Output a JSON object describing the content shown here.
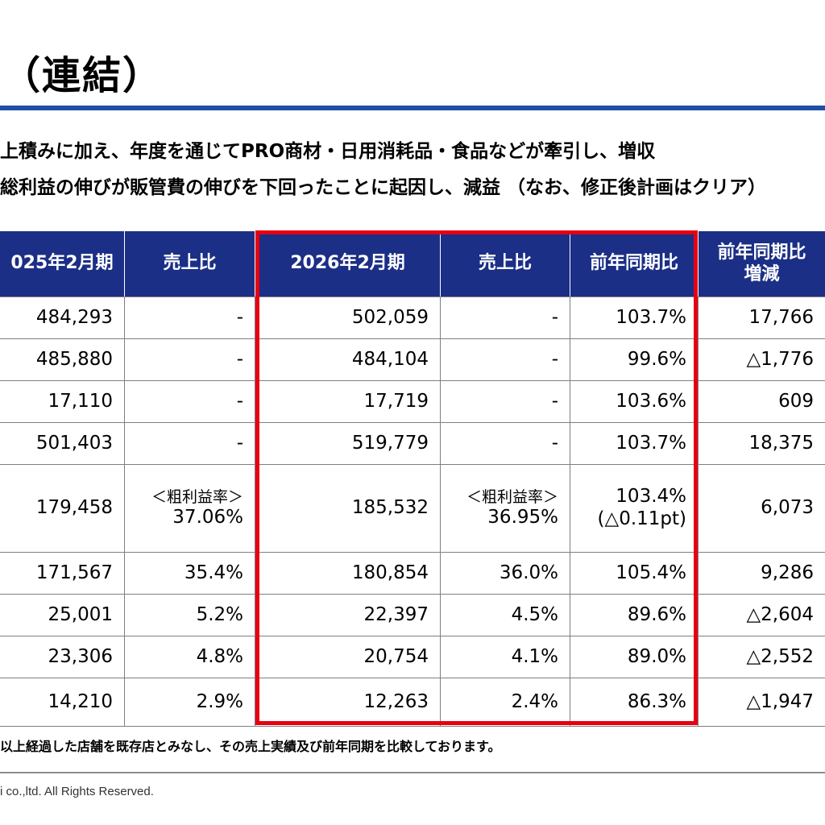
{
  "title": "（連結）",
  "bullets": [
    "上積みに加え、年度を通じてPRO商材・日用消耗品・食品などが牽引し、増収",
    "総利益の伸びが販管費の伸びを下回ったことに起因し、減益 （なお、修正後計画はクリア）"
  ],
  "table": {
    "headers": {
      "fy2025": "025年2月期",
      "ratio_prev": "売上比",
      "fy2026": "2026年2月期",
      "ratio_cur": "売上比",
      "yoy": "前年同期比",
      "diff_1": "前年同期比",
      "diff_2": "増減"
    },
    "rows": [
      {
        "fy2025": "484,293",
        "ratio_prev": "-",
        "fy2026": "502,059",
        "ratio_cur": "-",
        "yoy": "103.7%",
        "diff": "17,766"
      },
      {
        "fy2025": "485,880",
        "ratio_prev": "-",
        "fy2026": "484,104",
        "ratio_cur": "-",
        "yoy": "99.6%",
        "diff": "△1,776"
      },
      {
        "fy2025": "17,110",
        "ratio_prev": "-",
        "fy2026": "17,719",
        "ratio_cur": "-",
        "yoy": "103.6%",
        "diff": "609"
      },
      {
        "fy2025": "501,403",
        "ratio_prev": "-",
        "fy2026": "519,779",
        "ratio_cur": "-",
        "yoy": "103.7%",
        "diff": "18,375"
      },
      {
        "fy2025": "179,458",
        "ratio_prev_label": "＜粗利益率＞",
        "ratio_prev": "37.06%",
        "fy2026": "185,532",
        "ratio_cur_label": "＜粗利益率＞",
        "ratio_cur": "36.95%",
        "yoy": "103.4%",
        "yoy_sub": "(△0.11pt)",
        "diff": "6,073"
      },
      {
        "fy2025": "171,567",
        "ratio_prev": "35.4%",
        "fy2026": "180,854",
        "ratio_cur": "36.0%",
        "yoy": "105.4%",
        "diff": "9,286"
      },
      {
        "fy2025": "25,001",
        "ratio_prev": "5.2%",
        "fy2026": "22,397",
        "ratio_cur": "4.5%",
        "yoy": "89.6%",
        "diff": "△2,604"
      },
      {
        "fy2025": "23,306",
        "ratio_prev": "4.8%",
        "fy2026": "20,754",
        "ratio_cur": "4.1%",
        "yoy": "89.0%",
        "diff": "△2,552"
      },
      {
        "fy2025": "14,210",
        "ratio_prev": "2.9%",
        "fy2026": "12,263",
        "ratio_cur": "2.4%",
        "yoy": "86.3%",
        "diff": "△1,947"
      }
    ]
  },
  "note": "以上経過した店舗を既存店とみなし、その売上実績及び前年同期を比較しております。",
  "footer": "i co.,ltd. All Rights Reserved.",
  "colors": {
    "header_bg": "#1b2f86",
    "accent_rule": "#1f4ea8",
    "highlight_box": "#e60012"
  }
}
